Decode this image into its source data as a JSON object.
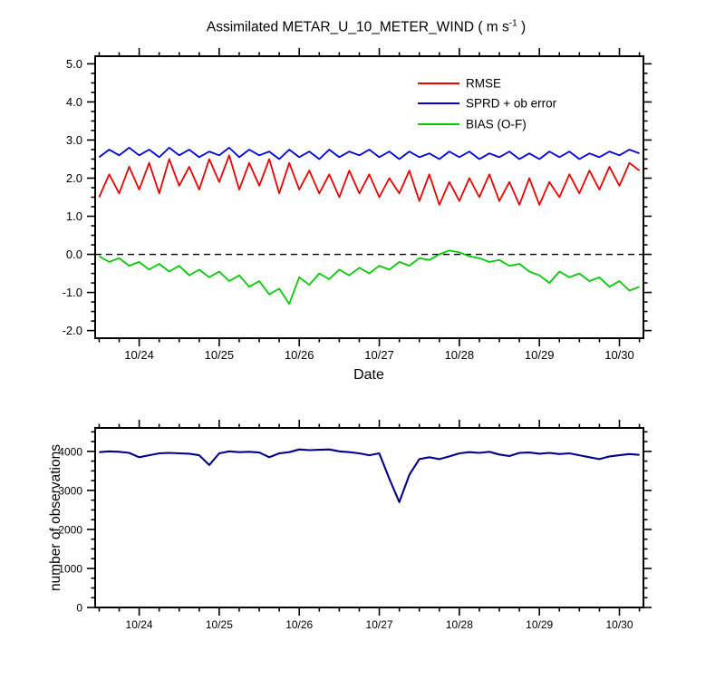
{
  "page": {
    "background": "#ffffff"
  },
  "top_chart": {
    "title_main": "Assimilated METAR_U_10_METER_WIND ( m s",
    "title_sup": "-1",
    "title_close": " )",
    "xlabel": "Date"
  },
  "bottom_chart": {
    "ylabel": "number of observations"
  },
  "chart_data": [
    {
      "type": "line",
      "title": "Assimilated METAR_U_10_METER_WIND ( m s-1 )",
      "xlabel": "Date",
      "x_start": 23.5,
      "x_step": 0.125,
      "xlim": [
        23.45,
        30.3
      ],
      "ylim": [
        -2.2,
        5.2
      ],
      "xticks": [
        24,
        25,
        26,
        27,
        28,
        29,
        30
      ],
      "xtick_labels": [
        "10/24",
        "10/25",
        "10/26",
        "10/27",
        "10/28",
        "10/29",
        "10/30"
      ],
      "yticks": [
        -2.0,
        -1.0,
        0.0,
        1.0,
        2.0,
        3.0,
        4.0,
        5.0
      ],
      "ytick_labels": [
        "-2.0",
        "-1.0",
        "0.0",
        "1.0",
        "2.0",
        "3.0",
        "4.0",
        "5.0"
      ],
      "minor_x_step": 0.25,
      "minor_y_step": 0.25,
      "zero_line": true,
      "legend_position": "upper-right-inside",
      "grid": false,
      "series": [
        {
          "name": "RMSE",
          "color": "#ee0000",
          "values": [
            1.5,
            2.1,
            1.6,
            2.3,
            1.7,
            2.4,
            1.6,
            2.5,
            1.8,
            2.3,
            1.7,
            2.5,
            1.9,
            2.6,
            1.7,
            2.4,
            1.8,
            2.5,
            1.6,
            2.4,
            1.7,
            2.2,
            1.6,
            2.1,
            1.5,
            2.2,
            1.6,
            2.1,
            1.5,
            2.0,
            1.6,
            2.2,
            1.4,
            2.1,
            1.3,
            1.9,
            1.4,
            2.0,
            1.5,
            2.1,
            1.4,
            1.9,
            1.3,
            2.0,
            1.3,
            1.9,
            1.5,
            2.1,
            1.6,
            2.2,
            1.7,
            2.3,
            1.8,
            2.4,
            2.2
          ]
        },
        {
          "name": "SPRD + ob error",
          "color": "#0000dd",
          "values": [
            2.55,
            2.75,
            2.6,
            2.8,
            2.6,
            2.75,
            2.55,
            2.8,
            2.6,
            2.75,
            2.55,
            2.7,
            2.6,
            2.8,
            2.55,
            2.75,
            2.6,
            2.7,
            2.5,
            2.75,
            2.55,
            2.7,
            2.5,
            2.75,
            2.55,
            2.7,
            2.6,
            2.75,
            2.55,
            2.7,
            2.5,
            2.7,
            2.55,
            2.65,
            2.5,
            2.7,
            2.55,
            2.7,
            2.5,
            2.65,
            2.55,
            2.7,
            2.5,
            2.65,
            2.5,
            2.7,
            2.55,
            2.7,
            2.5,
            2.65,
            2.55,
            2.7,
            2.6,
            2.75,
            2.65
          ]
        },
        {
          "name": "BIAS (O-F)",
          "color": "#00cc00",
          "values": [
            -0.05,
            -0.2,
            -0.1,
            -0.3,
            -0.2,
            -0.4,
            -0.25,
            -0.45,
            -0.3,
            -0.55,
            -0.4,
            -0.6,
            -0.45,
            -0.7,
            -0.55,
            -0.85,
            -0.7,
            -1.05,
            -0.9,
            -1.3,
            -0.6,
            -0.8,
            -0.5,
            -0.65,
            -0.4,
            -0.55,
            -0.35,
            -0.5,
            -0.3,
            -0.4,
            -0.2,
            -0.3,
            -0.1,
            -0.15,
            0.0,
            0.1,
            0.05,
            -0.05,
            -0.1,
            -0.2,
            -0.15,
            -0.3,
            -0.25,
            -0.45,
            -0.55,
            -0.75,
            -0.45,
            -0.6,
            -0.5,
            -0.7,
            -0.6,
            -0.85,
            -0.7,
            -0.95,
            -0.85
          ]
        }
      ]
    },
    {
      "type": "line",
      "ylabel": "number of observations",
      "x_start": 23.5,
      "x_step": 0.125,
      "xlim": [
        23.45,
        30.3
      ],
      "ylim": [
        0,
        4600
      ],
      "xticks": [
        24,
        25,
        26,
        27,
        28,
        29,
        30
      ],
      "xtick_labels": [
        "10/24",
        "10/25",
        "10/26",
        "10/27",
        "10/28",
        "10/29",
        "10/30"
      ],
      "yticks": [
        0,
        1000,
        2000,
        3000,
        4000
      ],
      "ytick_labels": [
        "0",
        "1000",
        "2000",
        "3000",
        "4000"
      ],
      "minor_x_step": 0.25,
      "minor_y_step": 250,
      "zero_line": false,
      "grid": false,
      "series": [
        {
          "name": "number of observations",
          "color": "#00008b",
          "width": 2.1,
          "values": [
            3980,
            4000,
            3990,
            3960,
            3850,
            3900,
            3950,
            3960,
            3950,
            3940,
            3900,
            3650,
            3950,
            4000,
            3980,
            3990,
            3970,
            3850,
            3950,
            3980,
            4050,
            4030,
            4040,
            4050,
            4000,
            3980,
            3950,
            3900,
            3950,
            3300,
            2700,
            3400,
            3800,
            3850,
            3800,
            3870,
            3950,
            3980,
            3960,
            3990,
            3920,
            3880,
            3960,
            3970,
            3940,
            3960,
            3930,
            3950,
            3900,
            3850,
            3800,
            3870,
            3900,
            3930,
            3910
          ]
        }
      ]
    }
  ]
}
